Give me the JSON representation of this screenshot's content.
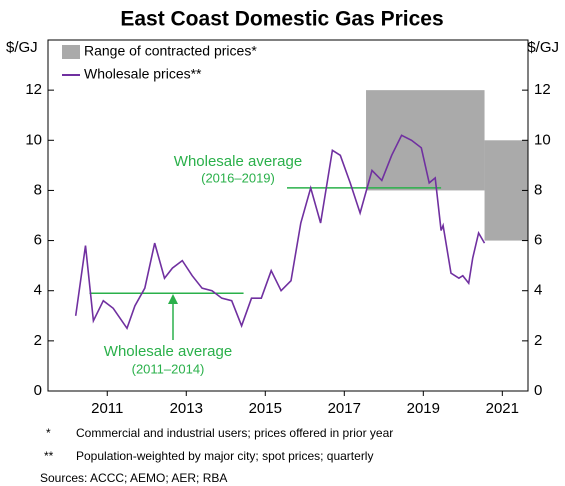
{
  "chart_data": {
    "type": "line",
    "title": "East Coast Domestic Gas Prices",
    "y_unit": "$/GJ",
    "ylim": [
      0,
      14
    ],
    "yticks": [
      0,
      2,
      4,
      6,
      8,
      10,
      12
    ],
    "xlim": [
      2010,
      2022.15
    ],
    "xticks": [
      {
        "value": 2011.5,
        "label": "2011"
      },
      {
        "value": 2013.5,
        "label": "2013"
      },
      {
        "value": 2015.5,
        "label": "2015"
      },
      {
        "value": 2017.5,
        "label": "2017"
      },
      {
        "value": 2019.5,
        "label": "2019"
      },
      {
        "value": 2021.5,
        "label": "2021"
      }
    ],
    "ranges": {
      "name": "Range of contracted prices*",
      "color": "#aaaaaa",
      "items": [
        {
          "x": [
            2018.05,
            2021.05
          ],
          "low": 8,
          "high": 12
        },
        {
          "x": [
            2021.05,
            2022.15
          ],
          "low": 6,
          "high": 10
        }
      ]
    },
    "series": [
      {
        "name": "Wholesale prices**",
        "color": "#7030a0",
        "x": [
          2010.7,
          2010.95,
          2011.15,
          2011.4,
          2011.65,
          2012.0,
          2012.2,
          2012.45,
          2012.7,
          2012.95,
          2013.15,
          2013.4,
          2013.65,
          2013.9,
          2014.15,
          2014.4,
          2014.65,
          2014.9,
          2015.15,
          2015.4,
          2015.65,
          2015.9,
          2016.15,
          2016.4,
          2016.65,
          2016.9,
          2017.2,
          2017.4,
          2017.65,
          2017.9,
          2018.2,
          2018.45,
          2018.7,
          2018.95,
          2019.2,
          2019.45,
          2019.65,
          2019.8,
          2019.95,
          2020.0,
          2020.2,
          2020.4,
          2020.5,
          2020.65,
          2020.75,
          2020.9,
          2021.05
        ],
        "values": [
          3.0,
          5.8,
          2.8,
          3.6,
          3.3,
          2.5,
          3.4,
          4.1,
          5.9,
          4.5,
          4.9,
          5.2,
          4.6,
          4.1,
          4.0,
          3.7,
          3.6,
          2.6,
          3.7,
          3.7,
          4.8,
          4.0,
          4.4,
          6.7,
          8.1,
          6.7,
          9.6,
          9.4,
          8.3,
          7.1,
          8.8,
          8.4,
          9.4,
          10.2,
          10.0,
          9.7,
          8.3,
          8.5,
          6.4,
          6.6,
          4.7,
          4.5,
          4.6,
          4.3,
          5.3,
          6.3,
          5.9
        ]
      }
    ],
    "averages": [
      {
        "x": [
          2011.05,
          2014.95
        ],
        "value": 3.9,
        "label": "Wholesale average",
        "period": "(2011–2014)"
      },
      {
        "x": [
          2016.05,
          2019.95
        ],
        "value": 8.1,
        "label": "Wholesale average",
        "period": "(2016–2019)"
      }
    ],
    "average_color": "#2ab04a",
    "footnotes": [
      {
        "mark": "*",
        "text": "Commercial and industrial users; prices offered in prior year"
      },
      {
        "mark": "**",
        "text": "Population-weighted by major city; spot prices; quarterly"
      }
    ],
    "sources": "Sources: ACCC; AEMO; AER; RBA"
  }
}
